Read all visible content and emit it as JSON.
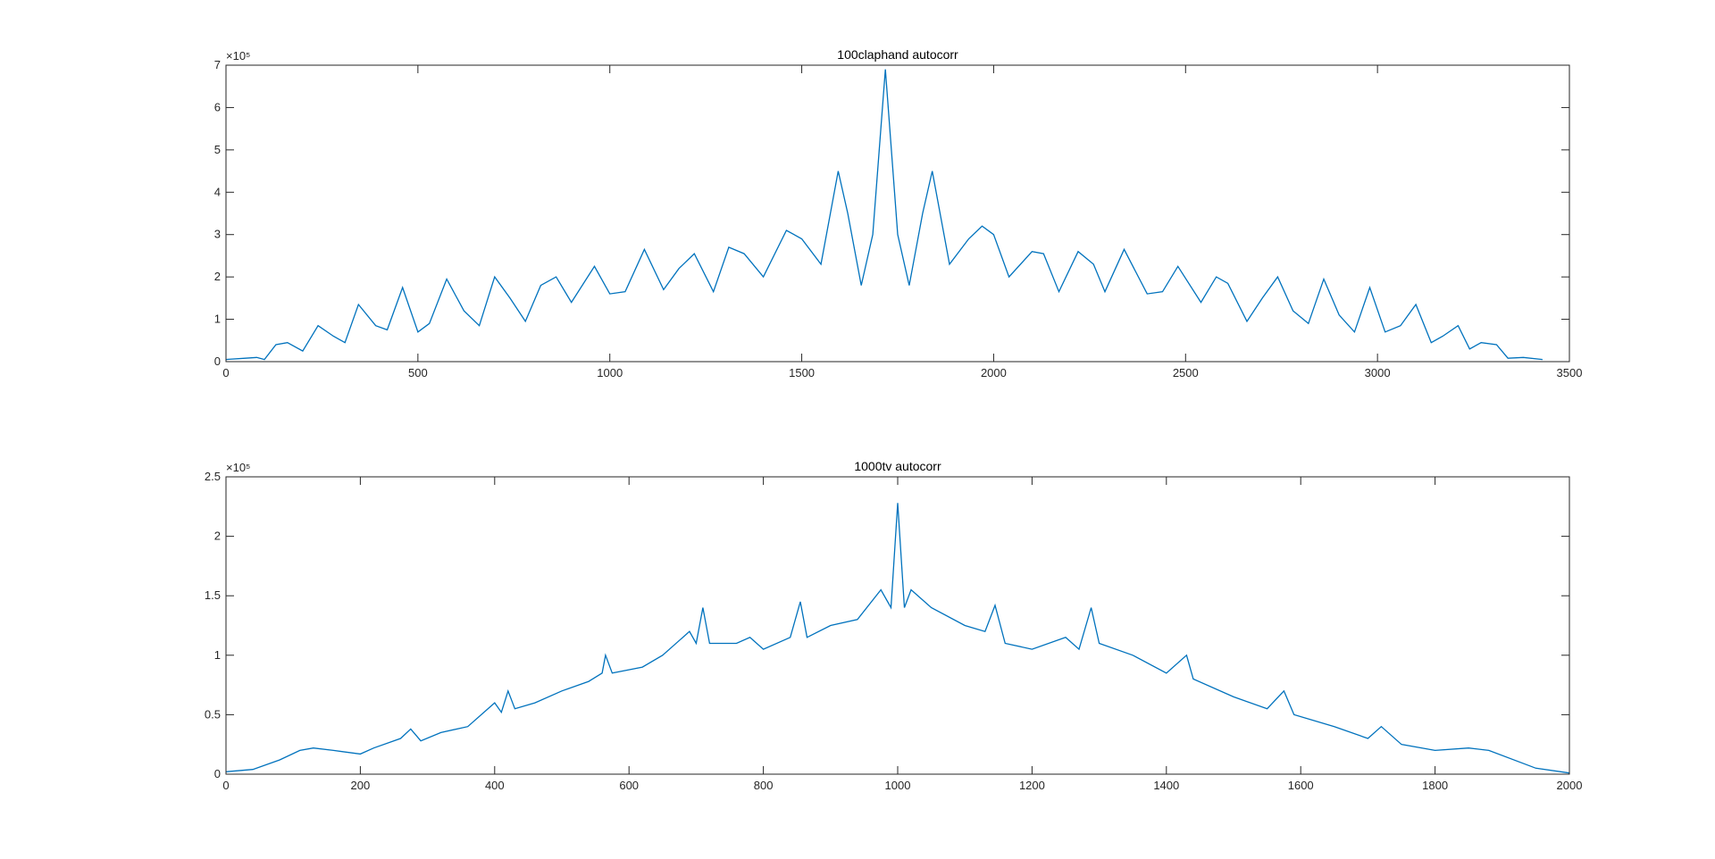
{
  "chart_data": [
    {
      "type": "line",
      "title": "100claphand autocorr",
      "y_exponent_label": "×10⁵",
      "color": "#0072bd",
      "xlim": [
        0,
        3500
      ],
      "xticks": [
        0,
        500,
        1000,
        1500,
        2000,
        2500,
        3000,
        3500
      ],
      "ylim": [
        0,
        7
      ],
      "yticks": [
        0,
        1,
        2,
        3,
        4,
        5,
        6,
        7
      ],
      "x": [
        0,
        50,
        80,
        100,
        130,
        160,
        200,
        240,
        280,
        310,
        345,
        390,
        420,
        460,
        500,
        530,
        575,
        620,
        660,
        700,
        740,
        780,
        820,
        860,
        900,
        960,
        1000,
        1040,
        1090,
        1140,
        1180,
        1220,
        1270,
        1310,
        1350,
        1400,
        1460,
        1500,
        1550,
        1595,
        1620,
        1655,
        1685,
        1718,
        1750,
        1780,
        1815,
        1840,
        1885,
        1935,
        1970,
        2000,
        2040,
        2100,
        2130,
        2170,
        2220,
        2260,
        2290,
        2340,
        2400,
        2440,
        2480,
        2540,
        2580,
        2610,
        2660,
        2700,
        2740,
        2780,
        2820,
        2860,
        2900,
        2940,
        2980,
        3020,
        3060,
        3100,
        3140,
        3170,
        3210,
        3240,
        3270,
        3310,
        3340,
        3380,
        3430
      ],
      "values": [
        0.05,
        0.08,
        0.1,
        0.05,
        0.4,
        0.45,
        0.25,
        0.85,
        0.6,
        0.45,
        1.35,
        0.85,
        0.75,
        1.75,
        0.7,
        0.9,
        1.95,
        1.2,
        0.85,
        2.0,
        1.5,
        0.95,
        1.8,
        2.0,
        1.4,
        2.25,
        1.6,
        1.65,
        2.65,
        1.7,
        2.2,
        2.55,
        1.65,
        2.7,
        2.55,
        2.0,
        3.1,
        2.9,
        2.3,
        4.5,
        3.5,
        1.8,
        3.0,
        6.9,
        3.0,
        1.8,
        3.5,
        4.5,
        2.3,
        2.9,
        3.2,
        3.0,
        2.0,
        2.6,
        2.55,
        1.65,
        2.6,
        2.3,
        1.65,
        2.65,
        1.6,
        1.65,
        2.25,
        1.4,
        2.0,
        1.85,
        0.95,
        1.5,
        2.0,
        1.2,
        0.9,
        1.95,
        1.1,
        0.7,
        1.75,
        0.7,
        0.85,
        1.35,
        0.45,
        0.6,
        0.85,
        0.3,
        0.45,
        0.4,
        0.08,
        0.1,
        0.05
      ]
    },
    {
      "type": "line",
      "title": "1000tv autocorr",
      "y_exponent_label": "×10⁵",
      "color": "#0072bd",
      "xlim": [
        0,
        2000
      ],
      "xticks": [
        0,
        200,
        400,
        600,
        800,
        1000,
        1200,
        1400,
        1600,
        1800,
        2000
      ],
      "ylim": [
        0,
        2.5
      ],
      "yticks": [
        0,
        0.5,
        1,
        1.5,
        2,
        2.5
      ],
      "x": [
        0,
        40,
        80,
        110,
        130,
        160,
        200,
        220,
        260,
        275,
        290,
        320,
        360,
        400,
        410,
        420,
        430,
        460,
        500,
        540,
        560,
        565,
        575,
        620,
        650,
        690,
        700,
        710,
        720,
        760,
        780,
        800,
        840,
        855,
        865,
        900,
        940,
        975,
        990,
        1000,
        1010,
        1020,
        1050,
        1100,
        1130,
        1145,
        1160,
        1200,
        1250,
        1270,
        1288,
        1300,
        1350,
        1400,
        1430,
        1440,
        1500,
        1550,
        1575,
        1590,
        1650,
        1700,
        1720,
        1750,
        1800,
        1850,
        1880,
        1950,
        2000
      ],
      "values": [
        0.02,
        0.04,
        0.12,
        0.2,
        0.22,
        0.2,
        0.17,
        0.22,
        0.3,
        0.38,
        0.28,
        0.35,
        0.4,
        0.6,
        0.52,
        0.7,
        0.55,
        0.6,
        0.7,
        0.78,
        0.85,
        1.0,
        0.85,
        0.9,
        1.0,
        1.2,
        1.1,
        1.4,
        1.1,
        1.1,
        1.15,
        1.05,
        1.15,
        1.45,
        1.15,
        1.25,
        1.3,
        1.55,
        1.4,
        2.28,
        1.4,
        1.55,
        1.4,
        1.25,
        1.2,
        1.42,
        1.1,
        1.05,
        1.15,
        1.05,
        1.4,
        1.1,
        1.0,
        0.85,
        1.0,
        0.8,
        0.65,
        0.55,
        0.7,
        0.5,
        0.4,
        0.3,
        0.4,
        0.25,
        0.2,
        0.22,
        0.2,
        0.05,
        0.01
      ]
    }
  ]
}
